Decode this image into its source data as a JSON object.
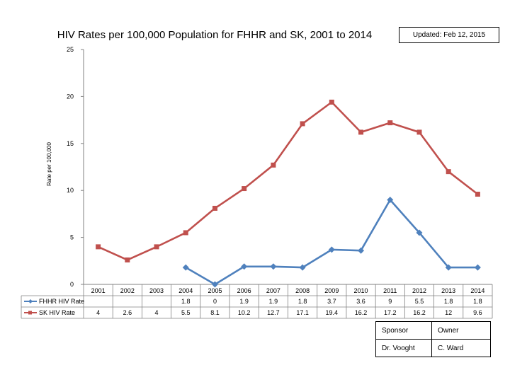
{
  "updated": "Updated: Feb 12, 2015",
  "owner_table": {
    "headers": [
      "Sponsor",
      "Owner"
    ],
    "row": [
      "Dr. Vooght",
      "C. Ward"
    ]
  },
  "chart_data": {
    "type": "line",
    "title": "HIV Rates per 100,000 Population for FHHR and SK, 2001 to 2014",
    "xlabel": "",
    "ylabel": "Rate per 100,000",
    "ylim": [
      0,
      25
    ],
    "yticks": [
      0,
      5,
      10,
      15,
      20,
      25
    ],
    "grid": false,
    "legend": "bottom-left data table",
    "categories": [
      "2001",
      "2002",
      "2003",
      "2004",
      "2005",
      "2006",
      "2007",
      "2008",
      "2009",
      "2010",
      "2011",
      "2012",
      "2013",
      "2014"
    ],
    "series": [
      {
        "name": "FHHR HIV Rate",
        "color": "#4f81bd",
        "marker": "diamond",
        "values": [
          null,
          null,
          null,
          1.8,
          0,
          1.9,
          1.9,
          1.8,
          3.7,
          3.6,
          9,
          5.5,
          1.8,
          1.8
        ]
      },
      {
        "name": "SK HIV Rate",
        "color": "#c0504d",
        "marker": "square",
        "values": [
          4,
          2.6,
          4,
          5.5,
          8.1,
          10.2,
          12.7,
          17.1,
          19.4,
          16.2,
          17.2,
          16.2,
          12,
          9.6
        ]
      }
    ]
  }
}
